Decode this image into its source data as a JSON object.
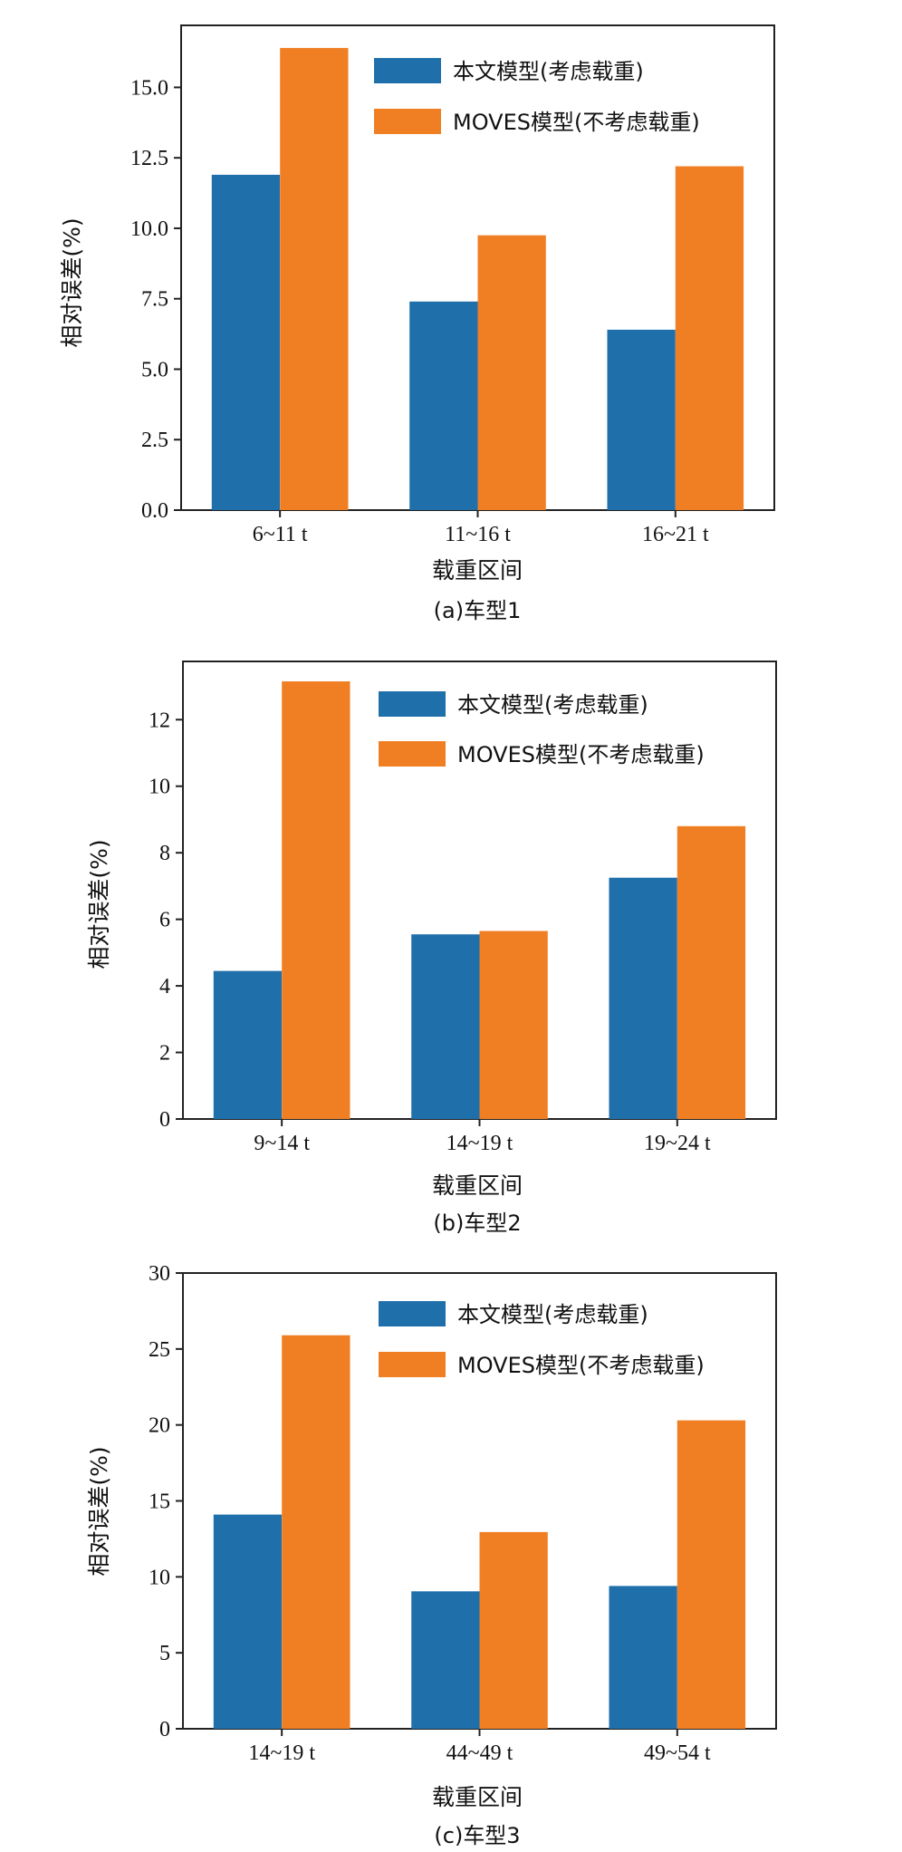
{
  "legend": {
    "series1": "本文模型(考虑载重)",
    "series2": "MOVES模型(不考虑载重)"
  },
  "colors": {
    "series1": "#1f6fab",
    "series2": "#f07f24"
  },
  "chart_data": [
    {
      "type": "bar",
      "caption": "(a)车型1",
      "xlabel": "载重区间",
      "ylabel": "相对误差(%)",
      "categories": [
        "6~11 t",
        "11~16 t",
        "16~21 t"
      ],
      "series": [
        {
          "name": "本文模型(考虑载重)",
          "values": [
            11.9,
            7.4,
            6.4
          ]
        },
        {
          "name": "MOVES模型(不考虑载重)",
          "values": [
            16.4,
            9.75,
            12.2
          ]
        }
      ],
      "ylim": [
        0,
        17.2
      ],
      "yticks": [
        "0.0",
        "2.5",
        "5.0",
        "7.5",
        "10.0",
        "12.5",
        "15.0"
      ],
      "ytick_values": [
        0,
        2.5,
        5,
        7.5,
        10,
        12.5,
        15
      ],
      "legend_position": "top-right",
      "grid": false
    },
    {
      "type": "bar",
      "caption": "(b)车型2",
      "xlabel": "载重区间",
      "ylabel": "相对误差(%)",
      "categories": [
        "9~14 t",
        "14~19 t",
        "19~24 t"
      ],
      "series": [
        {
          "name": "本文模型(考虑载重)",
          "values": [
            4.45,
            5.55,
            7.25
          ]
        },
        {
          "name": "MOVES模型(不考虑载重)",
          "values": [
            13.15,
            5.65,
            8.8
          ]
        }
      ],
      "ylim": [
        0,
        13.75
      ],
      "yticks": [
        "0",
        "2",
        "4",
        "6",
        "8",
        "10",
        "12"
      ],
      "ytick_values": [
        0,
        2,
        4,
        6,
        8,
        10,
        12
      ],
      "legend_position": "top-right",
      "grid": false
    },
    {
      "type": "bar",
      "caption": "(c)车型3",
      "xlabel": "载重区间",
      "ylabel": "相对误差(%)",
      "categories": [
        "14~19 t",
        "44~49 t",
        "49~54 t"
      ],
      "series": [
        {
          "name": "本文模型(考虑载重)",
          "values": [
            14.1,
            9.05,
            9.4
          ]
        },
        {
          "name": "MOVES模型(不考虑载重)",
          "values": [
            25.9,
            12.95,
            20.3
          ]
        }
      ],
      "ylim": [
        0,
        30
      ],
      "yticks": [
        "0",
        "5",
        "10",
        "15",
        "20",
        "25",
        "30"
      ],
      "ytick_values": [
        0,
        5,
        10,
        15,
        20,
        25,
        30
      ],
      "legend_position": "top-right",
      "grid": false
    }
  ]
}
